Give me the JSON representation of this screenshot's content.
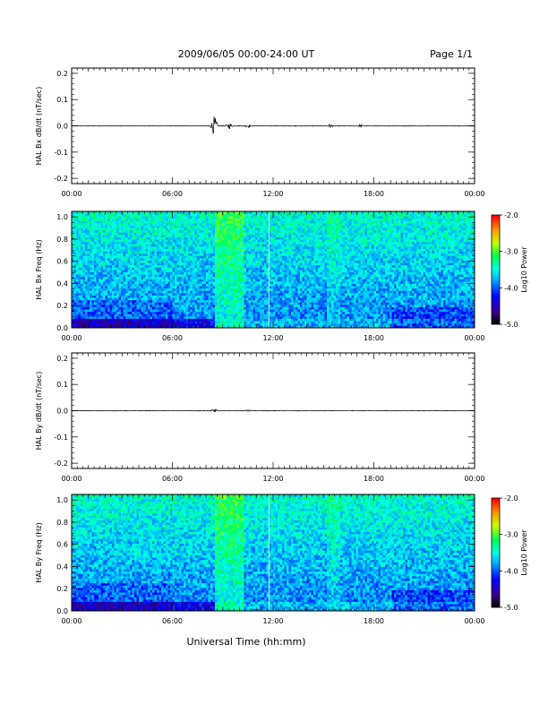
{
  "header": {
    "title": "2009/06/05  00:00-24:00 UT",
    "page": "Page 1/1"
  },
  "xlabel": "Universal Time (hh:mm)",
  "chart_data": [
    {
      "type": "line",
      "ylabel": "HAL Bx dB/dt (nT/sec)",
      "xlim": [
        0,
        24
      ],
      "ylim": [
        -0.22,
        0.22
      ],
      "xticks": [
        "00:00",
        "06:00",
        "12:00",
        "18:00",
        "00:00"
      ],
      "yticks": [
        "0.2",
        "0.1",
        "0.0",
        "-0.1",
        "-0.2"
      ],
      "series": [
        {
          "baseline": 0.0,
          "bursts": [
            {
              "x": 8.5,
              "amplitude": 0.04
            },
            {
              "x": 9.4,
              "amplitude": 0.012
            },
            {
              "x": 10.5,
              "amplitude": 0.008
            },
            {
              "x": 15.4,
              "amplitude": 0.008
            },
            {
              "x": 17.2,
              "amplitude": 0.006
            }
          ]
        }
      ]
    },
    {
      "type": "heatmap",
      "ylabel": "HAL Bx Freq (Hz)",
      "xlim": [
        0,
        24
      ],
      "ylim": [
        0,
        1.05
      ],
      "xticks": [
        "00:00",
        "06:00",
        "12:00",
        "18:00",
        "00:00"
      ],
      "yticks": [
        "1.0",
        "0.8",
        "0.6",
        "0.4",
        "0.2",
        "0.0"
      ],
      "colorbar": {
        "label": "Log10 Power",
        "ticks": [
          "-2.0",
          "-3.0",
          "-4.0",
          "-5.0"
        ],
        "range": [
          -5.0,
          -2.0
        ]
      },
      "features": {
        "active_band": [
          8.5,
          10.2
        ],
        "secondary_band": [
          15.2,
          16.0
        ],
        "vertical_line": 11.75,
        "low_freq_enhancement": [
          8.5,
          24
        ]
      }
    },
    {
      "type": "line",
      "ylabel": "HAL By dB/dt (nT/sec)",
      "xlim": [
        0,
        24
      ],
      "ylim": [
        -0.22,
        0.22
      ],
      "xticks": [
        "00:00",
        "06:00",
        "12:00",
        "18:00",
        "00:00"
      ],
      "yticks": [
        "0.2",
        "0.1",
        "0.0",
        "-0.1",
        "-0.2"
      ],
      "series": [
        {
          "baseline": 0.0,
          "bursts": [
            {
              "x": 8.5,
              "amplitude": 0.01
            },
            {
              "x": 10.5,
              "amplitude": 0.005
            }
          ]
        }
      ]
    },
    {
      "type": "heatmap",
      "ylabel": "HAL By Freq (Hz)",
      "xlim": [
        0,
        24
      ],
      "ylim": [
        0,
        1.05
      ],
      "xticks": [
        "00:00",
        "06:00",
        "12:00",
        "18:00",
        "00:00"
      ],
      "yticks": [
        "1.0",
        "0.8",
        "0.6",
        "0.4",
        "0.2",
        "0.0"
      ],
      "colorbar": {
        "label": "Log10 Power",
        "ticks": [
          "-2.0",
          "-3.0",
          "-4.0",
          "-5.0"
        ],
        "range": [
          -5.0,
          -2.0
        ]
      },
      "features": {
        "active_band": [
          8.5,
          10.2
        ],
        "secondary_band": [
          15.2,
          16.0
        ],
        "vertical_line": 11.75,
        "low_freq_enhancement": [
          8.5,
          24
        ]
      }
    }
  ]
}
